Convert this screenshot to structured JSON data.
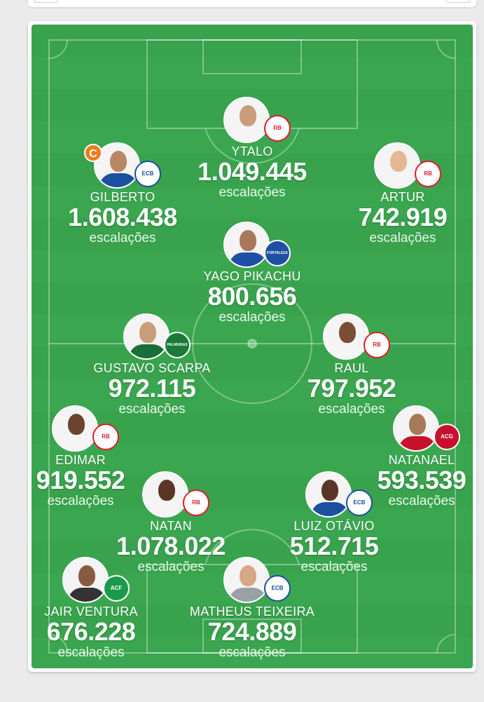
{
  "sub_label": "escalações",
  "captain_label": "C",
  "players": [
    {
      "name": "YTALO",
      "count": "1.049.445",
      "club": "Red Bull Bragantino",
      "badge_text": "RB",
      "badge_color": "#e21b2d",
      "badge_bg": "#ffffff",
      "skin": "#c99c7a",
      "shirt": "#f5f5f5"
    },
    {
      "name": "GILBERTO",
      "count": "1.608.438",
      "club": "Bahia",
      "badge_text": "ECB",
      "badge_color": "#1c4fa0",
      "badge_bg": "#ffffff",
      "skin": "#b98766",
      "shirt": "#1c4fa0",
      "captain": true
    },
    {
      "name": "ARTUR",
      "count": "742.919",
      "club": "Red Bull Bragantino",
      "badge_text": "RB",
      "badge_color": "#e21b2d",
      "badge_bg": "#ffffff",
      "skin": "#e2b896",
      "shirt": "#f5f5f5"
    },
    {
      "name": "YAGO PIKACHU",
      "count": "800.656",
      "club": "Fortaleza",
      "badge_text": "FORTALEZA",
      "badge_color": "#ffffff",
      "badge_bg": "#1f4fa3",
      "skin": "#a8785a",
      "shirt": "#1f4fa3"
    },
    {
      "name": "GUSTAVO SCARPA",
      "count": "972.115",
      "club": "Palmeiras",
      "badge_text": "PALMEIRAS",
      "badge_color": "#ffffff",
      "badge_bg": "#1a7a3a",
      "skin": "#c99c7a",
      "shirt": "#1a6d36"
    },
    {
      "name": "RAUL",
      "count": "797.952",
      "club": "Red Bull Bragantino",
      "badge_text": "RB",
      "badge_color": "#e21b2d",
      "badge_bg": "#ffffff",
      "skin": "#7a4e35",
      "shirt": "#f5f5f5"
    },
    {
      "name": "EDIMAR",
      "count": "919.552",
      "club": "Red Bull Bragantino",
      "badge_text": "RB",
      "badge_color": "#e21b2d",
      "badge_bg": "#ffffff",
      "skin": "#6b4330",
      "shirt": "#f5f5f5"
    },
    {
      "name": "NATANAEL",
      "count": "593.539",
      "club": "Atlético Goianiense",
      "badge_text": "ACG",
      "badge_color": "#ffffff",
      "badge_bg": "#c8102e",
      "skin": "#a8785a",
      "shirt": "#c8102e"
    },
    {
      "name": "NATAN",
      "count": "1.078.022",
      "club": "Red Bull Bragantino",
      "badge_text": "RB",
      "badge_color": "#e21b2d",
      "badge_bg": "#ffffff",
      "skin": "#5a3626",
      "shirt": "#f5f5f5"
    },
    {
      "name": "LUIZ OTÁVIO",
      "count": "512.715",
      "club": "Bahia",
      "badge_text": "ECB",
      "badge_color": "#1c4fa0",
      "badge_bg": "#ffffff",
      "skin": "#5a3626",
      "shirt": "#1c4fa0"
    },
    {
      "name": "JAIR VENTURA",
      "count": "676.228",
      "club": "Chapecoense",
      "badge_text": "ACF",
      "badge_color": "#ffffff",
      "badge_bg": "#1a9a4a",
      "skin": "#8a5a40",
      "shirt": "#333333"
    },
    {
      "name": "MATHEUS TEIXEIRA",
      "count": "724.889",
      "club": "Bahia",
      "badge_text": "ECB",
      "badge_color": "#1c4fa0",
      "badge_bg": "#ffffff",
      "skin": "#d6a888",
      "shirt": "#9aa0a6"
    }
  ]
}
